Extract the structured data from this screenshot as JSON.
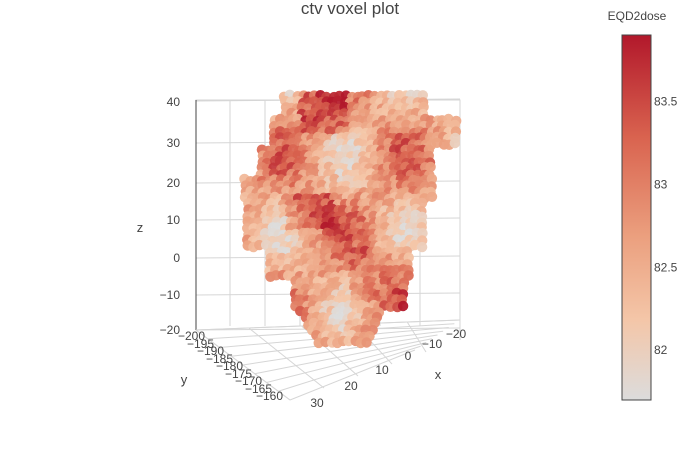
{
  "chart_data": {
    "type": "scatter3d",
    "title": "ctv voxel plot",
    "xlabel": "x",
    "ylabel": "y",
    "zlabel": "z",
    "x_ticks": [
      "−20",
      "−10",
      "0",
      "10",
      "20",
      "30"
    ],
    "y_ticks": [
      "−200",
      "−195",
      "−190",
      "−185",
      "−180",
      "−175",
      "−170",
      "−165",
      "−160"
    ],
    "z_ticks": [
      "40",
      "30",
      "20",
      "10",
      "0",
      "−10",
      "−20"
    ],
    "xlim": [
      -25,
      32
    ],
    "ylim": [
      -200,
      -158
    ],
    "zlim": [
      -22,
      42
    ],
    "colorbar": {
      "title": "EQD2dose",
      "range": [
        81.7,
        83.9
      ],
      "ticks": [
        "83.5",
        "83",
        "82.5",
        "82"
      ],
      "colorscale": "RdBu-red-half",
      "colors": [
        "#dcdcdc",
        "#f4c6a8",
        "#eb9f7e",
        "#d9634f",
        "#b2182b"
      ]
    },
    "grid": true,
    "point_color_hint": "#e8917a"
  }
}
